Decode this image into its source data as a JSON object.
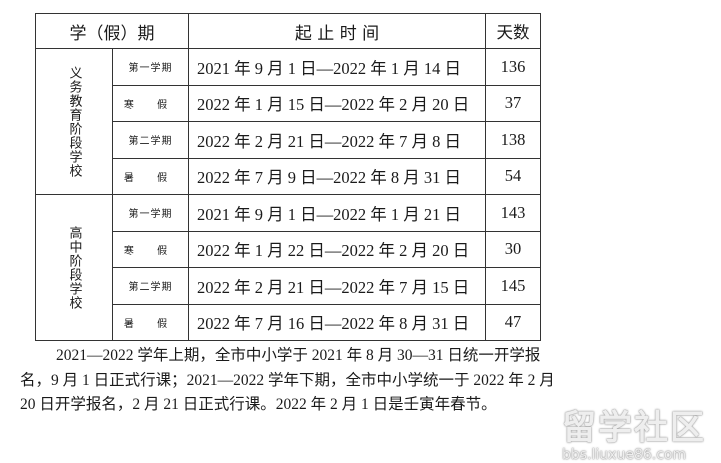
{
  "table": {
    "headers": {
      "period": "学（假）期",
      "dates": "起 止 时 间",
      "days": "天数"
    },
    "groups": [
      {
        "label": "义务教育阶段学校",
        "rows": [
          {
            "term": "第一学期",
            "dates": "2021 年 9 月 1 日—2022 年 1 月 14 日",
            "days": "136"
          },
          {
            "term": "寒 假",
            "dates": "2022 年 1 月 15 日—2022 年 2 月 20 日",
            "days": "37"
          },
          {
            "term": "第二学期",
            "dates": "2022 年 2 月 21 日—2022 年 7 月 8 日",
            "days": "138"
          },
          {
            "term": "暑 假",
            "dates": "2022 年 7 月 9 日—2022 年 8 月 31 日",
            "days": "54"
          }
        ]
      },
      {
        "label": "高中阶段学校",
        "rows": [
          {
            "term": "第一学期",
            "dates": "2021 年 9 月 1 日—2022 年 1 月 21 日",
            "days": "143"
          },
          {
            "term": "寒 假",
            "dates": "2022 年 1 月 22 日—2022 年 2 月 20 日",
            "days": "30"
          },
          {
            "term": "第二学期",
            "dates": "2022 年 2 月 21 日—2022 年 7 月 15 日",
            "days": "145"
          },
          {
            "term": "暑 假",
            "dates": "2022 年 7 月 16 日—2022 年 8 月 31 日",
            "days": "47"
          }
        ]
      }
    ]
  },
  "note": "2021—2022 学年上期，全市中小学于 2021 年 8 月 30—31 日统一开学报名，9 月 1 日正式行课；2021—2022 学年下期，全市中小学统一于 2022 年 2 月 20 日开学报名，2 月 21 日正式行课。2022 年 2 月 1 日是壬寅年春节。",
  "watermark": {
    "title": "留学社区",
    "url": "bbs.liuxue86.com"
  }
}
